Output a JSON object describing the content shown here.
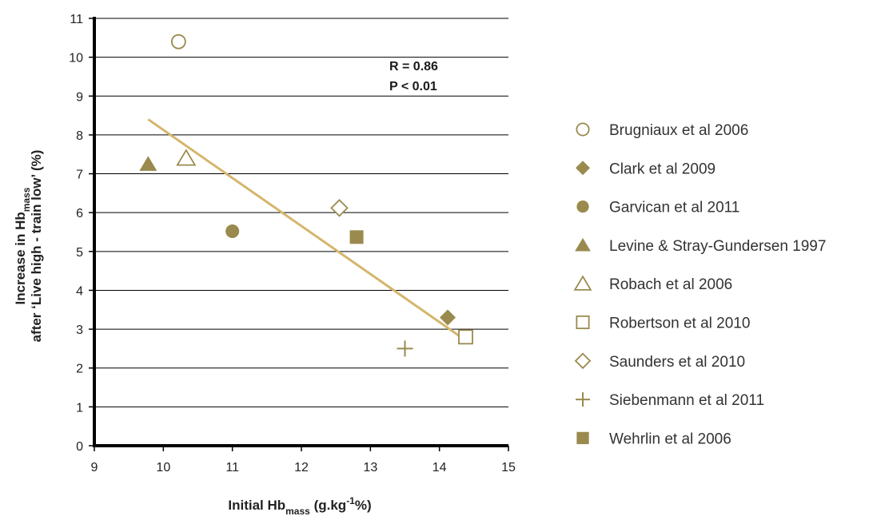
{
  "chart_data": {
    "type": "scatter",
    "title": "",
    "xlabel": {
      "main": "Initial Hb",
      "sub": "mass",
      "rest": " (g.kg",
      "sup": "-1",
      "end": "%)"
    },
    "ylabel": {
      "line1_main": "Increase in Hb",
      "line1_sub": "mass",
      "line2": "after ‘Live high - train low’ (%)"
    },
    "xlim": [
      9,
      15
    ],
    "ylim": [
      0,
      11
    ],
    "x_ticks": [
      "9",
      "10",
      "11",
      "12",
      "13",
      "14",
      "15"
    ],
    "y_ticks": [
      "0",
      "1",
      "2",
      "3",
      "4",
      "5",
      "6",
      "7",
      "8",
      "9",
      "10",
      "11"
    ],
    "grid": {
      "horizontal": true,
      "vertical": false
    },
    "legend_position": "right",
    "colors": {
      "marker": "#9a8a4e",
      "trendline": "#d4b66c",
      "grid": "#000000"
    },
    "annotations": [
      "R = 0.86",
      "P < 0.01"
    ],
    "trendline": {
      "x": [
        9.78,
        14.35
      ],
      "y": [
        8.4,
        2.75
      ]
    },
    "series": [
      {
        "name": "Brugniaux et al 2006",
        "marker": "circle-open",
        "x": [
          10.22
        ],
        "y": [
          10.4
        ]
      },
      {
        "name": "Clark et al 2009",
        "marker": "diamond-filled",
        "x": [
          14.12
        ],
        "y": [
          3.3
        ]
      },
      {
        "name": "Garvican et al 2011",
        "marker": "circle-filled",
        "x": [
          11.0
        ],
        "y": [
          5.52
        ]
      },
      {
        "name": "Levine & Stray-Gundersen 1997",
        "marker": "triangle-filled",
        "x": [
          9.78
        ],
        "y": [
          7.25
        ]
      },
      {
        "name": "Robach et al 2006",
        "marker": "triangle-open",
        "x": [
          10.33
        ],
        "y": [
          7.4
        ]
      },
      {
        "name": "Robertson et al 2010",
        "marker": "square-open",
        "x": [
          14.38
        ],
        "y": [
          2.8
        ]
      },
      {
        "name": "Saunders et al 2010",
        "marker": "diamond-open",
        "x": [
          12.55
        ],
        "y": [
          6.12
        ]
      },
      {
        "name": "Siebenmann et al 2011",
        "marker": "plus",
        "x": [
          13.5
        ],
        "y": [
          2.5
        ]
      },
      {
        "name": "Wehrlin et al 2006",
        "marker": "square-filled",
        "x": [
          12.8
        ],
        "y": [
          5.37
        ]
      }
    ]
  }
}
